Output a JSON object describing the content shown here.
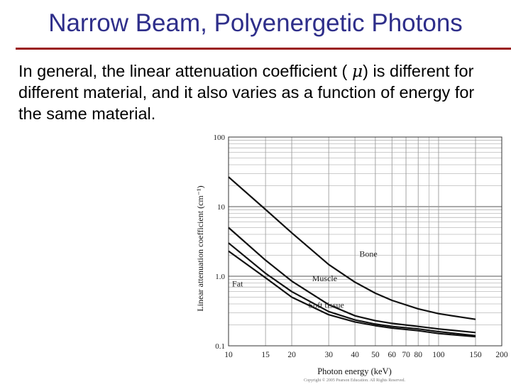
{
  "slide": {
    "title": "Narrow Beam, Polyenergetic Photons",
    "body_parts": [
      "In general, the linear attenuation coefficient ( ",
      "μ",
      ") is different for different material, and it also varies as a function of energy for the same material."
    ]
  },
  "colors": {
    "title": "#2e2e8a",
    "rule": "#9a1b1b",
    "curve": "#111111",
    "grid": "#9a9a9a"
  },
  "chart_data": {
    "type": "line",
    "xlabel": "Photon energy (keV)",
    "ylabel": "Linear attenuation coefficient (cm⁻¹)",
    "x_scale": "log",
    "y_scale": "log",
    "xlim": [
      10,
      200
    ],
    "ylim": [
      0.1,
      100
    ],
    "x_ticks": [
      10,
      15,
      20,
      30,
      40,
      50,
      60,
      70,
      80,
      100,
      150,
      200
    ],
    "y_ticks": [
      {
        "value": 0.1,
        "label": "0.1"
      },
      {
        "value": 1,
        "label": "1.0"
      },
      {
        "value": 10,
        "label": "10"
      },
      {
        "value": 100,
        "label": "100"
      }
    ],
    "grid": true,
    "series": [
      {
        "name": "Bone",
        "x": [
          10,
          15,
          20,
          30,
          40,
          50,
          60,
          80,
          100,
          150
        ],
        "y": [
          26.7,
          9.1,
          4.2,
          1.47,
          0.82,
          0.57,
          0.45,
          0.34,
          0.29,
          0.24
        ]
      },
      {
        "name": "Muscle",
        "x": [
          10,
          15,
          20,
          30,
          40,
          50,
          60,
          80,
          100,
          150
        ],
        "y": [
          5.0,
          1.7,
          0.85,
          0.39,
          0.27,
          0.23,
          0.21,
          0.19,
          0.175,
          0.155
        ]
      },
      {
        "name": "Fat",
        "x": [
          10,
          15,
          20,
          30,
          40,
          50,
          60,
          80,
          100,
          150
        ],
        "y": [
          3.0,
          1.1,
          0.6,
          0.31,
          0.235,
          0.205,
          0.19,
          0.175,
          0.16,
          0.14
        ]
      },
      {
        "name": "Soft tissue",
        "x": [
          10,
          15,
          20,
          30,
          40,
          50,
          60,
          80,
          100,
          150
        ],
        "y": [
          2.3,
          0.95,
          0.5,
          0.28,
          0.22,
          0.195,
          0.18,
          0.165,
          0.15,
          0.135
        ]
      }
    ],
    "annotations": [
      "Bone",
      "Muscle",
      "Fat",
      "Soft tissue"
    ]
  },
  "copyright": "Copyright © 2005 Pearson Education. All Rights Reserved."
}
